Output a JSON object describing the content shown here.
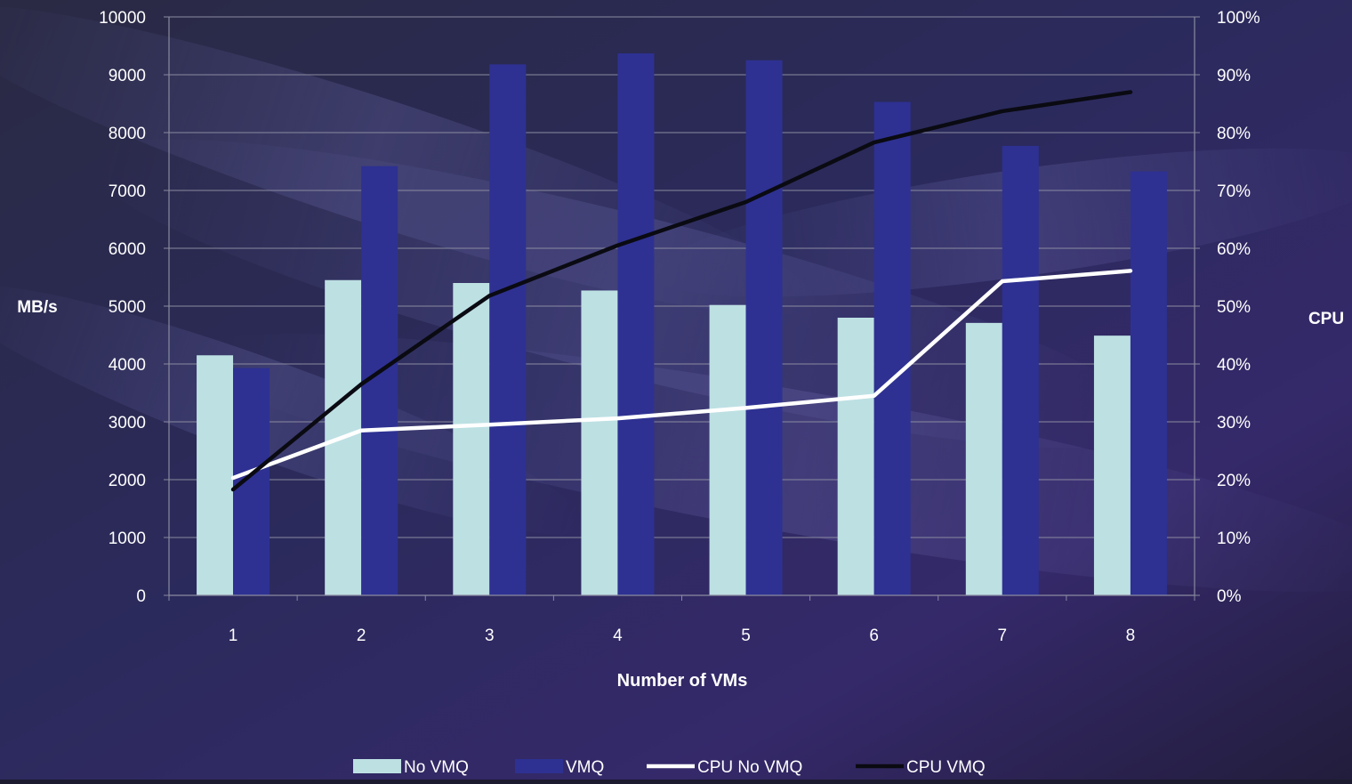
{
  "colors": {
    "no_vmq_bar": "#bde0e3",
    "vmq_bar": "#2e3192",
    "cpu_no_vmq_line": "#ffffff",
    "cpu_vmq_line": "#0a0a12",
    "gridline": "#8a8aa0",
    "text": "#ffffff"
  },
  "chart_data": {
    "type": "bar",
    "combo": "bar+line",
    "title": "",
    "xlabel": "Number of VMs",
    "ylabel": "MB/s",
    "y2label": "CPU",
    "categories": [
      "1",
      "2",
      "3",
      "4",
      "5",
      "6",
      "7",
      "8"
    ],
    "ylim": [
      0,
      10000
    ],
    "yticks": [
      "0",
      "1000",
      "2000",
      "3000",
      "4000",
      "5000",
      "6000",
      "7000",
      "8000",
      "9000",
      "10000"
    ],
    "y2lim": [
      0,
      100
    ],
    "y2ticks": [
      "0%",
      "10%",
      "20%",
      "30%",
      "40%",
      "50%",
      "60%",
      "70%",
      "80%",
      "90%",
      "100%"
    ],
    "grid": true,
    "legend_position": "bottom",
    "series": [
      {
        "name": "No VMQ",
        "type": "bar",
        "axis": "left",
        "values": [
          4150,
          5450,
          5400,
          5270,
          5020,
          4800,
          4710,
          4490
        ]
      },
      {
        "name": "VMQ",
        "type": "bar",
        "axis": "left",
        "values": [
          3930,
          7420,
          9180,
          9370,
          9250,
          8530,
          7770,
          7330
        ]
      },
      {
        "name": "CPU No VMQ",
        "type": "line",
        "axis": "right",
        "values": [
          20.3,
          28.5,
          29.5,
          30.6,
          32.4,
          34.5,
          54.3,
          56.1
        ]
      },
      {
        "name": "CPU VMQ",
        "type": "line",
        "axis": "right",
        "values": [
          18.3,
          36.5,
          51.8,
          60.5,
          68.0,
          78.3,
          83.7,
          87.0
        ]
      }
    ]
  }
}
